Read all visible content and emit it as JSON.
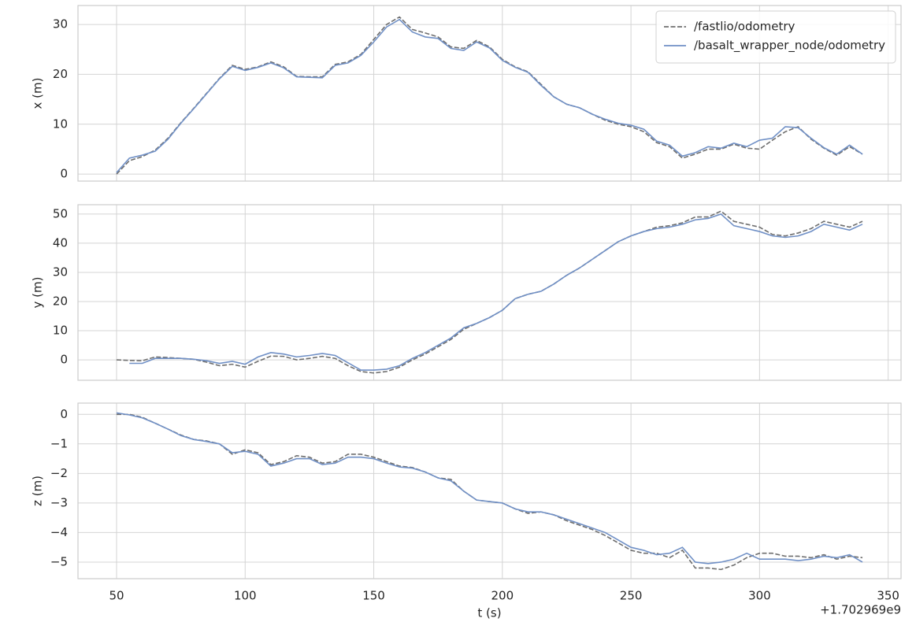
{
  "chart_data": [
    {
      "type": "line",
      "ylabel": "x (m)",
      "legend": "upper right",
      "grid": true,
      "xlim": [
        35,
        355
      ],
      "xticks": [
        50,
        100,
        150,
        200,
        250,
        300,
        350
      ],
      "ylim": [
        -1.4,
        33.8
      ],
      "yticks": [
        0,
        10,
        20,
        30
      ],
      "x": [
        50,
        55,
        60,
        65,
        70,
        75,
        80,
        85,
        90,
        95,
        100,
        105,
        110,
        115,
        120,
        125,
        130,
        135,
        140,
        145,
        150,
        155,
        160,
        165,
        170,
        175,
        180,
        185,
        190,
        195,
        200,
        205,
        210,
        215,
        220,
        225,
        230,
        235,
        240,
        245,
        250,
        255,
        260,
        265,
        270,
        275,
        280,
        285,
        290,
        295,
        300,
        305,
        310,
        315,
        320,
        325,
        330,
        335,
        340
      ],
      "series": [
        {
          "name": "/fastlio/odometry",
          "color": "#6e6e6e",
          "linestyle": "dashed",
          "values": [
            0,
            2.7,
            3.5,
            4.8,
            7.2,
            10.3,
            13.2,
            16.2,
            19.2,
            21.8,
            21.0,
            21.5,
            22.5,
            21.5,
            19.6,
            19.5,
            19.5,
            22.0,
            22.5,
            24.0,
            27.0,
            30.0,
            31.5,
            29.0,
            28.3,
            27.5,
            25.5,
            25.2,
            26.8,
            25.5,
            23.0,
            21.5,
            20.5,
            18.0,
            15.5,
            14.0,
            13.3,
            12.0,
            10.8,
            10.0,
            9.5,
            8.5,
            6.3,
            5.5,
            3.2,
            4.0,
            5.0,
            5.0,
            6.0,
            5.2,
            5.0,
            6.8,
            8.5,
            9.5,
            7.0,
            5.2,
            3.8,
            5.5,
            4.0
          ]
        },
        {
          "name": "/basalt_wrapper_node/odometry",
          "color": "#7090c6",
          "linestyle": "solid",
          "values": [
            0.3,
            3.2,
            3.8,
            4.6,
            7.0,
            10.2,
            13.1,
            16.1,
            19.1,
            21.6,
            20.8,
            21.4,
            22.3,
            21.3,
            19.5,
            19.4,
            19.3,
            21.8,
            22.3,
            23.8,
            26.5,
            29.5,
            31.0,
            28.5,
            27.5,
            27.2,
            25.2,
            24.8,
            26.5,
            25.3,
            22.8,
            21.4,
            20.4,
            17.8,
            15.5,
            14.0,
            13.3,
            12.0,
            11.0,
            10.2,
            9.8,
            9.0,
            6.6,
            5.8,
            3.6,
            4.3,
            5.5,
            5.2,
            6.2,
            5.5,
            6.8,
            7.2,
            9.5,
            9.3,
            7.2,
            5.3,
            4.0,
            5.8,
            4.0
          ]
        }
      ]
    },
    {
      "type": "line",
      "ylabel": "y (m)",
      "grid": true,
      "xlim": [
        35,
        355
      ],
      "xticks": [
        50,
        100,
        150,
        200,
        250,
        300,
        350
      ],
      "ylim": [
        -7,
        53.2
      ],
      "yticks": [
        0,
        10,
        20,
        30,
        40,
        50
      ],
      "x": [
        50,
        55,
        60,
        65,
        70,
        75,
        80,
        85,
        90,
        95,
        100,
        105,
        110,
        115,
        120,
        125,
        130,
        135,
        140,
        145,
        150,
        155,
        160,
        165,
        170,
        175,
        180,
        185,
        190,
        195,
        200,
        205,
        210,
        215,
        220,
        225,
        230,
        235,
        240,
        245,
        250,
        255,
        260,
        265,
        270,
        275,
        280,
        285,
        290,
        295,
        300,
        305,
        310,
        315,
        320,
        325,
        330,
        335,
        340
      ],
      "series": [
        {
          "name": "/fastlio/odometry",
          "color": "#6e6e6e",
          "linestyle": "dashed",
          "values": [
            0,
            -0.2,
            -0.3,
            1.0,
            0.8,
            0.5,
            0.2,
            -0.8,
            -2.0,
            -1.5,
            -2.5,
            -0.5,
            1.3,
            1.2,
            0,
            0.5,
            1.2,
            0.5,
            -2.0,
            -4.0,
            -4.5,
            -4.0,
            -2.5,
            0,
            2,
            4.5,
            7,
            10.5,
            12.5,
            14.5,
            17,
            21,
            22.5,
            23.5,
            26,
            29,
            31.5,
            34.5,
            37.5,
            40.5,
            42.5,
            44,
            45.5,
            46,
            47,
            49,
            49,
            51,
            47.5,
            46.5,
            45.5,
            43,
            42.5,
            43.5,
            45,
            47.5,
            46.5,
            45.5,
            47.5
          ]
        },
        {
          "name": "/basalt_wrapper_node/odometry",
          "color": "#7090c6",
          "linestyle": "solid",
          "values": [
            null,
            -1.2,
            -1.2,
            0.5,
            0.5,
            0.5,
            0.2,
            -0.3,
            -1.2,
            -0.5,
            -1.5,
            1.0,
            2.5,
            2.0,
            1.0,
            1.5,
            2.2,
            1.5,
            -1.0,
            -3.5,
            -3.5,
            -3.2,
            -2.0,
            0.5,
            2.5,
            5.0,
            7.5,
            11,
            12.5,
            14.5,
            17,
            21,
            22.5,
            23.5,
            26,
            29,
            31.5,
            34.5,
            37.5,
            40.5,
            42.5,
            44,
            45,
            45.5,
            46.5,
            48,
            48.5,
            50,
            46,
            45,
            44,
            42.5,
            42,
            42.5,
            44,
            46.5,
            45.5,
            44.5,
            46.5
          ]
        }
      ]
    },
    {
      "type": "line",
      "ylabel": "z (m)",
      "xlabel": "t (s)",
      "x_offset_label": "+1.702969e9",
      "grid": true,
      "xlim": [
        35,
        355
      ],
      "xticks": [
        50,
        100,
        150,
        200,
        250,
        300,
        350
      ],
      "ylim": [
        -5.56,
        0.38
      ],
      "yticks": [
        {
          "value": -5,
          "label": "−5"
        },
        {
          "value": -4,
          "label": "−4"
        },
        {
          "value": -3,
          "label": "−3"
        },
        {
          "value": -2,
          "label": "−2"
        },
        {
          "value": -1,
          "label": "−1"
        },
        0
      ],
      "x": [
        50,
        55,
        60,
        65,
        70,
        75,
        80,
        85,
        90,
        95,
        100,
        105,
        110,
        115,
        120,
        125,
        130,
        135,
        140,
        145,
        150,
        155,
        160,
        165,
        170,
        175,
        180,
        185,
        190,
        195,
        200,
        205,
        210,
        215,
        220,
        225,
        230,
        235,
        240,
        245,
        250,
        255,
        260,
        265,
        270,
        275,
        280,
        285,
        290,
        295,
        300,
        305,
        310,
        315,
        320,
        325,
        330,
        335,
        340
      ],
      "series": [
        {
          "name": "/fastlio/odometry",
          "color": "#6e6e6e",
          "linestyle": "dashed",
          "values": [
            0,
            0,
            -0.1,
            -0.3,
            -0.5,
            -0.7,
            -0.85,
            -0.9,
            -1.0,
            -1.35,
            -1.2,
            -1.3,
            -1.7,
            -1.6,
            -1.4,
            -1.45,
            -1.65,
            -1.6,
            -1.35,
            -1.35,
            -1.45,
            -1.6,
            -1.75,
            -1.8,
            -1.95,
            -2.15,
            -2.2,
            -2.6,
            -2.9,
            -2.95,
            -3.0,
            -3.2,
            -3.35,
            -3.3,
            -3.4,
            -3.6,
            -3.75,
            -3.9,
            -4.1,
            -4.35,
            -4.6,
            -4.7,
            -4.7,
            -4.85,
            -4.6,
            -5.2,
            -5.2,
            -5.25,
            -5.1,
            -4.85,
            -4.7,
            -4.7,
            -4.8,
            -4.8,
            -4.85,
            -4.75,
            -4.9,
            -4.8,
            -4.85
          ]
        },
        {
          "name": "/basalt_wrapper_node/odometry",
          "color": "#7090c6",
          "linestyle": "solid",
          "values": [
            0.05,
            -0.02,
            -0.12,
            -0.3,
            -0.5,
            -0.72,
            -0.85,
            -0.92,
            -1.0,
            -1.3,
            -1.25,
            -1.35,
            -1.75,
            -1.65,
            -1.5,
            -1.5,
            -1.7,
            -1.65,
            -1.45,
            -1.45,
            -1.5,
            -1.65,
            -1.78,
            -1.82,
            -1.95,
            -2.15,
            -2.25,
            -2.6,
            -2.9,
            -2.95,
            -3.0,
            -3.2,
            -3.3,
            -3.3,
            -3.4,
            -3.55,
            -3.7,
            -3.85,
            -4.0,
            -4.25,
            -4.5,
            -4.6,
            -4.75,
            -4.7,
            -4.5,
            -5.0,
            -5.05,
            -5.0,
            -4.9,
            -4.7,
            -4.9,
            -4.9,
            -4.9,
            -4.95,
            -4.9,
            -4.8,
            -4.85,
            -4.75,
            -5.0
          ]
        }
      ]
    }
  ]
}
